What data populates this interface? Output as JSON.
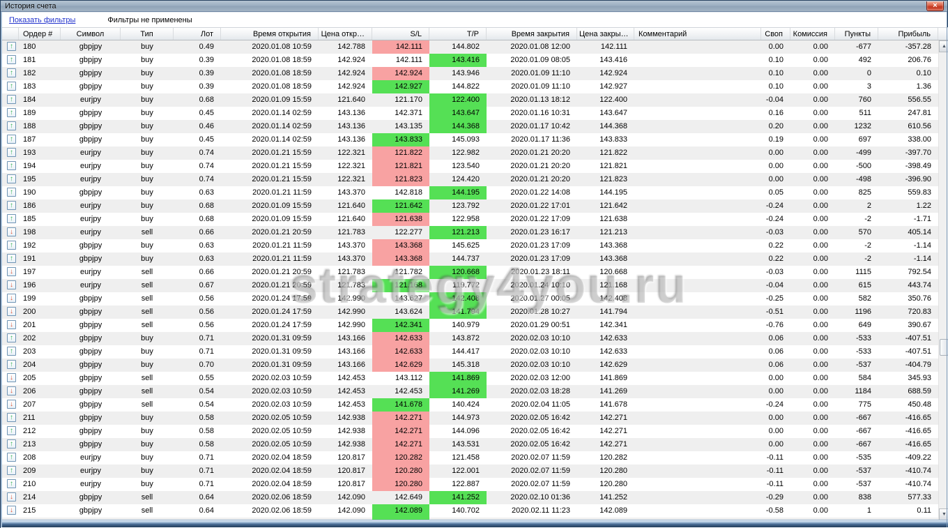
{
  "window": {
    "title": "История счета",
    "close_label": "×"
  },
  "filterbar": {
    "show_filters_link": "Показать фильтры",
    "status": "Фильтры не применены"
  },
  "watermark": {
    "text": "strategy4you.ru"
  },
  "icons": {
    "buy_arrow": "↑",
    "sell_arrow": "↓",
    "scroll_up": "▲",
    "scroll_down": "▼"
  },
  "colors": {
    "sl_tp_red": "#f8a2a2",
    "sl_tp_green": "#55e055",
    "row_alt": "#efefef",
    "link_blue": "#2233cc"
  },
  "table": {
    "columns": [
      "",
      "Ордер #",
      "Символ",
      "Тип",
      "Лот",
      "Время открытия",
      "Цена откр…",
      "S/L",
      "T/P",
      "Время закрытия",
      "Цена закры…",
      "Комментарий",
      "Своп",
      "Комиссия",
      "Пункты",
      "Прибыль"
    ],
    "rows": [
      {
        "order": "180",
        "symbol": "gbpjpy",
        "type": "buy",
        "lot": "0.49",
        "open_time": "2020.01.08 10:59",
        "open_price": "142.788",
        "sl": "142.111",
        "sl_hl": "red",
        "tp": "144.802",
        "tp_hl": null,
        "close_time": "2020.01.08 12:00",
        "close_price": "142.111",
        "comment": "",
        "swap": "0.00",
        "commission": "0.00",
        "points": "-677",
        "profit": "-357.28"
      },
      {
        "order": "181",
        "symbol": "gbpjpy",
        "type": "buy",
        "lot": "0.39",
        "open_time": "2020.01.08 18:59",
        "open_price": "142.924",
        "sl": "142.111",
        "sl_hl": null,
        "tp": "143.416",
        "tp_hl": "green",
        "close_time": "2020.01.09 08:05",
        "close_price": "143.416",
        "comment": "",
        "swap": "0.10",
        "commission": "0.00",
        "points": "492",
        "profit": "206.76"
      },
      {
        "order": "182",
        "symbol": "gbpjpy",
        "type": "buy",
        "lot": "0.39",
        "open_time": "2020.01.08 18:59",
        "open_price": "142.924",
        "sl": "142.924",
        "sl_hl": "red",
        "tp": "143.946",
        "tp_hl": null,
        "close_time": "2020.01.09 11:10",
        "close_price": "142.924",
        "comment": "",
        "swap": "0.10",
        "commission": "0.00",
        "points": "0",
        "profit": "0.10"
      },
      {
        "order": "183",
        "symbol": "gbpjpy",
        "type": "buy",
        "lot": "0.39",
        "open_time": "2020.01.08 18:59",
        "open_price": "142.924",
        "sl": "142.927",
        "sl_hl": "green",
        "tp": "144.822",
        "tp_hl": null,
        "close_time": "2020.01.09 11:10",
        "close_price": "142.927",
        "comment": "",
        "swap": "0.10",
        "commission": "0.00",
        "points": "3",
        "profit": "1.36"
      },
      {
        "order": "184",
        "symbol": "eurjpy",
        "type": "buy",
        "lot": "0.68",
        "open_time": "2020.01.09 15:59",
        "open_price": "121.640",
        "sl": "121.170",
        "sl_hl": null,
        "tp": "122.400",
        "tp_hl": "green",
        "close_time": "2020.01.13 18:12",
        "close_price": "122.400",
        "comment": "",
        "swap": "-0.04",
        "commission": "0.00",
        "points": "760",
        "profit": "556.55"
      },
      {
        "order": "189",
        "symbol": "gbpjpy",
        "type": "buy",
        "lot": "0.45",
        "open_time": "2020.01.14 02:59",
        "open_price": "143.136",
        "sl": "142.371",
        "sl_hl": null,
        "tp": "143.647",
        "tp_hl": "green",
        "close_time": "2020.01.16 10:31",
        "close_price": "143.647",
        "comment": "",
        "swap": "0.16",
        "commission": "0.00",
        "points": "511",
        "profit": "247.81"
      },
      {
        "order": "188",
        "symbol": "gbpjpy",
        "type": "buy",
        "lot": "0.46",
        "open_time": "2020.01.14 02:59",
        "open_price": "143.136",
        "sl": "143.135",
        "sl_hl": null,
        "tp": "144.368",
        "tp_hl": "green",
        "close_time": "2020.01.17 10:42",
        "close_price": "144.368",
        "comment": "",
        "swap": "0.20",
        "commission": "0.00",
        "points": "1232",
        "profit": "610.56"
      },
      {
        "order": "187",
        "symbol": "gbpjpy",
        "type": "buy",
        "lot": "0.45",
        "open_time": "2020.01.14 02:59",
        "open_price": "143.136",
        "sl": "143.833",
        "sl_hl": "green",
        "tp": "145.093",
        "tp_hl": null,
        "close_time": "2020.01.17 11:36",
        "close_price": "143.833",
        "comment": "",
        "swap": "0.19",
        "commission": "0.00",
        "points": "697",
        "profit": "338.00"
      },
      {
        "order": "193",
        "symbol": "eurjpy",
        "type": "buy",
        "lot": "0.74",
        "open_time": "2020.01.21 15:59",
        "open_price": "122.321",
        "sl": "121.822",
        "sl_hl": "red",
        "tp": "122.982",
        "tp_hl": null,
        "close_time": "2020.01.21 20:20",
        "close_price": "121.822",
        "comment": "",
        "swap": "0.00",
        "commission": "0.00",
        "points": "-499",
        "profit": "-397.70"
      },
      {
        "order": "194",
        "symbol": "eurjpy",
        "type": "buy",
        "lot": "0.74",
        "open_time": "2020.01.21 15:59",
        "open_price": "122.321",
        "sl": "121.821",
        "sl_hl": "red",
        "tp": "123.540",
        "tp_hl": null,
        "close_time": "2020.01.21 20:20",
        "close_price": "121.821",
        "comment": "",
        "swap": "0.00",
        "commission": "0.00",
        "points": "-500",
        "profit": "-398.49"
      },
      {
        "order": "195",
        "symbol": "eurjpy",
        "type": "buy",
        "lot": "0.74",
        "open_time": "2020.01.21 15:59",
        "open_price": "122.321",
        "sl": "121.823",
        "sl_hl": "red",
        "tp": "124.420",
        "tp_hl": null,
        "close_time": "2020.01.21 20:20",
        "close_price": "121.823",
        "comment": "",
        "swap": "0.00",
        "commission": "0.00",
        "points": "-498",
        "profit": "-396.90"
      },
      {
        "order": "190",
        "symbol": "gbpjpy",
        "type": "buy",
        "lot": "0.63",
        "open_time": "2020.01.21 11:59",
        "open_price": "143.370",
        "sl": "142.818",
        "sl_hl": null,
        "tp": "144.195",
        "tp_hl": "green",
        "close_time": "2020.01.22 14:08",
        "close_price": "144.195",
        "comment": "",
        "swap": "0.05",
        "commission": "0.00",
        "points": "825",
        "profit": "559.83"
      },
      {
        "order": "186",
        "symbol": "eurjpy",
        "type": "buy",
        "lot": "0.68",
        "open_time": "2020.01.09 15:59",
        "open_price": "121.640",
        "sl": "121.642",
        "sl_hl": "green",
        "tp": "123.792",
        "tp_hl": null,
        "close_time": "2020.01.22 17:01",
        "close_price": "121.642",
        "comment": "",
        "swap": "-0.24",
        "commission": "0.00",
        "points": "2",
        "profit": "1.22"
      },
      {
        "order": "185",
        "symbol": "eurjpy",
        "type": "buy",
        "lot": "0.68",
        "open_time": "2020.01.09 15:59",
        "open_price": "121.640",
        "sl": "121.638",
        "sl_hl": "red",
        "tp": "122.958",
        "tp_hl": null,
        "close_time": "2020.01.22 17:09",
        "close_price": "121.638",
        "comment": "",
        "swap": "-0.24",
        "commission": "0.00",
        "points": "-2",
        "profit": "-1.71"
      },
      {
        "order": "198",
        "symbol": "eurjpy",
        "type": "sell",
        "lot": "0.66",
        "open_time": "2020.01.21 20:59",
        "open_price": "121.783",
        "sl": "122.277",
        "sl_hl": null,
        "tp": "121.213",
        "tp_hl": "green",
        "close_time": "2020.01.23 16:17",
        "close_price": "121.213",
        "comment": "",
        "swap": "-0.03",
        "commission": "0.00",
        "points": "570",
        "profit": "405.14"
      },
      {
        "order": "192",
        "symbol": "gbpjpy",
        "type": "buy",
        "lot": "0.63",
        "open_time": "2020.01.21 11:59",
        "open_price": "143.370",
        "sl": "143.368",
        "sl_hl": "red",
        "tp": "145.625",
        "tp_hl": null,
        "close_time": "2020.01.23 17:09",
        "close_price": "143.368",
        "comment": "",
        "swap": "0.22",
        "commission": "0.00",
        "points": "-2",
        "profit": "-1.14"
      },
      {
        "order": "191",
        "symbol": "gbpjpy",
        "type": "buy",
        "lot": "0.63",
        "open_time": "2020.01.21 11:59",
        "open_price": "143.370",
        "sl": "143.368",
        "sl_hl": "red",
        "tp": "144.737",
        "tp_hl": null,
        "close_time": "2020.01.23 17:09",
        "close_price": "143.368",
        "comment": "",
        "swap": "0.22",
        "commission": "0.00",
        "points": "-2",
        "profit": "-1.14"
      },
      {
        "order": "197",
        "symbol": "eurjpy",
        "type": "sell",
        "lot": "0.66",
        "open_time": "2020.01.21 20:59",
        "open_price": "121.783",
        "sl": "121.782",
        "sl_hl": null,
        "tp": "120.668",
        "tp_hl": "green",
        "close_time": "2020.01.23 18:11",
        "close_price": "120.668",
        "comment": "",
        "swap": "-0.03",
        "commission": "0.00",
        "points": "1115",
        "profit": "792.54"
      },
      {
        "order": "196",
        "symbol": "eurjpy",
        "type": "sell",
        "lot": "0.67",
        "open_time": "2020.01.21 20:59",
        "open_price": "121.783",
        "sl": "121.168",
        "sl_hl": "green",
        "tp": "119.772",
        "tp_hl": null,
        "close_time": "2020.01.24 10:10",
        "close_price": "121.168",
        "comment": "",
        "swap": "-0.04",
        "commission": "0.00",
        "points": "615",
        "profit": "443.74"
      },
      {
        "order": "199",
        "symbol": "gbpjpy",
        "type": "sell",
        "lot": "0.56",
        "open_time": "2020.01.24 17:59",
        "open_price": "142.990",
        "sl": "143.627",
        "sl_hl": null,
        "tp": "142.408",
        "tp_hl": "green",
        "close_time": "2020.01.27 00:05",
        "close_price": "142.408",
        "comment": "",
        "swap": "-0.25",
        "commission": "0.00",
        "points": "582",
        "profit": "350.76"
      },
      {
        "order": "200",
        "symbol": "gbpjpy",
        "type": "sell",
        "lot": "0.56",
        "open_time": "2020.01.24 17:59",
        "open_price": "142.990",
        "sl": "143.624",
        "sl_hl": null,
        "tp": "141.794",
        "tp_hl": "green",
        "close_time": "2020.01.28 10:27",
        "close_price": "141.794",
        "comment": "",
        "swap": "-0.51",
        "commission": "0.00",
        "points": "1196",
        "profit": "720.83"
      },
      {
        "order": "201",
        "symbol": "gbpjpy",
        "type": "sell",
        "lot": "0.56",
        "open_time": "2020.01.24 17:59",
        "open_price": "142.990",
        "sl": "142.341",
        "sl_hl": "green",
        "tp": "140.979",
        "tp_hl": null,
        "close_time": "2020.01.29 00:51",
        "close_price": "142.341",
        "comment": "",
        "swap": "-0.76",
        "commission": "0.00",
        "points": "649",
        "profit": "390.67"
      },
      {
        "order": "202",
        "symbol": "gbpjpy",
        "type": "buy",
        "lot": "0.71",
        "open_time": "2020.01.31 09:59",
        "open_price": "143.166",
        "sl": "142.633",
        "sl_hl": "red",
        "tp": "143.872",
        "tp_hl": null,
        "close_time": "2020.02.03 10:10",
        "close_price": "142.633",
        "comment": "",
        "swap": "0.06",
        "commission": "0.00",
        "points": "-533",
        "profit": "-407.51"
      },
      {
        "order": "203",
        "symbol": "gbpjpy",
        "type": "buy",
        "lot": "0.71",
        "open_time": "2020.01.31 09:59",
        "open_price": "143.166",
        "sl": "142.633",
        "sl_hl": "red",
        "tp": "144.417",
        "tp_hl": null,
        "close_time": "2020.02.03 10:10",
        "close_price": "142.633",
        "comment": "",
        "swap": "0.06",
        "commission": "0.00",
        "points": "-533",
        "profit": "-407.51"
      },
      {
        "order": "204",
        "symbol": "gbpjpy",
        "type": "buy",
        "lot": "0.70",
        "open_time": "2020.01.31 09:59",
        "open_price": "143.166",
        "sl": "142.629",
        "sl_hl": "red",
        "tp": "145.318",
        "tp_hl": null,
        "close_time": "2020.02.03 10:10",
        "close_price": "142.629",
        "comment": "",
        "swap": "0.06",
        "commission": "0.00",
        "points": "-537",
        "profit": "-404.79"
      },
      {
        "order": "205",
        "symbol": "gbpjpy",
        "type": "sell",
        "lot": "0.55",
        "open_time": "2020.02.03 10:59",
        "open_price": "142.453",
        "sl": "143.112",
        "sl_hl": null,
        "tp": "141.869",
        "tp_hl": "green",
        "close_time": "2020.02.03 12:00",
        "close_price": "141.869",
        "comment": "",
        "swap": "0.00",
        "commission": "0.00",
        "points": "584",
        "profit": "345.93"
      },
      {
        "order": "206",
        "symbol": "gbpjpy",
        "type": "sell",
        "lot": "0.54",
        "open_time": "2020.02.03 10:59",
        "open_price": "142.453",
        "sl": "142.453",
        "sl_hl": null,
        "tp": "141.269",
        "tp_hl": "green",
        "close_time": "2020.02.03 18:28",
        "close_price": "141.269",
        "comment": "",
        "swap": "0.00",
        "commission": "0.00",
        "points": "1184",
        "profit": "688.59"
      },
      {
        "order": "207",
        "symbol": "gbpjpy",
        "type": "sell",
        "lot": "0.54",
        "open_time": "2020.02.03 10:59",
        "open_price": "142.453",
        "sl": "141.678",
        "sl_hl": "green",
        "tp": "140.424",
        "tp_hl": null,
        "close_time": "2020.02.04 11:05",
        "close_price": "141.678",
        "comment": "",
        "swap": "-0.24",
        "commission": "0.00",
        "points": "775",
        "profit": "450.48"
      },
      {
        "order": "211",
        "symbol": "gbpjpy",
        "type": "buy",
        "lot": "0.58",
        "open_time": "2020.02.05 10:59",
        "open_price": "142.938",
        "sl": "142.271",
        "sl_hl": "red",
        "tp": "144.973",
        "tp_hl": null,
        "close_time": "2020.02.05 16:42",
        "close_price": "142.271",
        "comment": "",
        "swap": "0.00",
        "commission": "0.00",
        "points": "-667",
        "profit": "-416.65"
      },
      {
        "order": "212",
        "symbol": "gbpjpy",
        "type": "buy",
        "lot": "0.58",
        "open_time": "2020.02.05 10:59",
        "open_price": "142.938",
        "sl": "142.271",
        "sl_hl": "red",
        "tp": "144.096",
        "tp_hl": null,
        "close_time": "2020.02.05 16:42",
        "close_price": "142.271",
        "comment": "",
        "swap": "0.00",
        "commission": "0.00",
        "points": "-667",
        "profit": "-416.65"
      },
      {
        "order": "213",
        "symbol": "gbpjpy",
        "type": "buy",
        "lot": "0.58",
        "open_time": "2020.02.05 10:59",
        "open_price": "142.938",
        "sl": "142.271",
        "sl_hl": "red",
        "tp": "143.531",
        "tp_hl": null,
        "close_time": "2020.02.05 16:42",
        "close_price": "142.271",
        "comment": "",
        "swap": "0.00",
        "commission": "0.00",
        "points": "-667",
        "profit": "-416.65"
      },
      {
        "order": "208",
        "symbol": "eurjpy",
        "type": "buy",
        "lot": "0.71",
        "open_time": "2020.02.04 18:59",
        "open_price": "120.817",
        "sl": "120.282",
        "sl_hl": "red",
        "tp": "121.458",
        "tp_hl": null,
        "close_time": "2020.02.07 11:59",
        "close_price": "120.282",
        "comment": "",
        "swap": "-0.11",
        "commission": "0.00",
        "points": "-535",
        "profit": "-409.22"
      },
      {
        "order": "209",
        "symbol": "eurjpy",
        "type": "buy",
        "lot": "0.71",
        "open_time": "2020.02.04 18:59",
        "open_price": "120.817",
        "sl": "120.280",
        "sl_hl": "red",
        "tp": "122.001",
        "tp_hl": null,
        "close_time": "2020.02.07 11:59",
        "close_price": "120.280",
        "comment": "",
        "swap": "-0.11",
        "commission": "0.00",
        "points": "-537",
        "profit": "-410.74"
      },
      {
        "order": "210",
        "symbol": "eurjpy",
        "type": "buy",
        "lot": "0.71",
        "open_time": "2020.02.04 18:59",
        "open_price": "120.817",
        "sl": "120.280",
        "sl_hl": "red",
        "tp": "122.887",
        "tp_hl": null,
        "close_time": "2020.02.07 11:59",
        "close_price": "120.280",
        "comment": "",
        "swap": "-0.11",
        "commission": "0.00",
        "points": "-537",
        "profit": "-410.74"
      },
      {
        "order": "214",
        "symbol": "gbpjpy",
        "type": "sell",
        "lot": "0.64",
        "open_time": "2020.02.06 18:59",
        "open_price": "142.090",
        "sl": "142.649",
        "sl_hl": null,
        "tp": "141.252",
        "tp_hl": "green",
        "close_time": "2020.02.10 01:36",
        "close_price": "141.252",
        "comment": "",
        "swap": "-0.29",
        "commission": "0.00",
        "points": "838",
        "profit": "577.33"
      },
      {
        "order": "215",
        "symbol": "gbpjpy",
        "type": "sell",
        "lot": "0.64",
        "open_time": "2020.02.06 18:59",
        "open_price": "142.090",
        "sl": "142.089",
        "sl_hl": "green",
        "tp": "140.702",
        "tp_hl": null,
        "close_time": "2020.02.11 11:23",
        "close_price": "142.089",
        "comment": "",
        "swap": "-0.58",
        "commission": "0.00",
        "points": "1",
        "profit": "0.11"
      }
    ],
    "partial_row": {
      "sl_hl": "green"
    }
  }
}
